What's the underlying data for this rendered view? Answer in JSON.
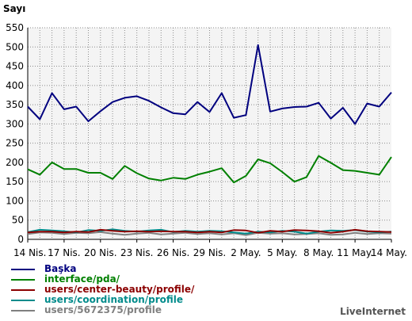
{
  "chart_data": {
    "type": "line",
    "title": "",
    "ylabel": "Sayı",
    "xlabel": "",
    "ylim": [
      0,
      550
    ],
    "y_ticks": [
      0,
      50,
      100,
      150,
      200,
      250,
      300,
      350,
      400,
      450,
      500,
      550
    ],
    "grid": true,
    "legend_position": "bottom-left",
    "x_ticks": [
      "14 Nis.",
      "17 Nis.",
      "20 Nis.",
      "23 Nis.",
      "26 Nis.",
      "29 Nis.",
      "2 May.",
      "5 May.",
      "8 May.",
      "11 May.",
      "14 May."
    ],
    "series": [
      {
        "name": "Başka",
        "color": "#00007f",
        "values": [
          345,
          312,
          380,
          338,
          345,
          307,
          333,
          357,
          368,
          372,
          360,
          343,
          328,
          325,
          357,
          331,
          380,
          316,
          323,
          505,
          332,
          340,
          344,
          345,
          355,
          314,
          342,
          300,
          353,
          345,
          382
        ]
      },
      {
        "name": "interface/pda/",
        "color": "#008000",
        "values": [
          182,
          168,
          200,
          183,
          183,
          173,
          173,
          157,
          191,
          172,
          158,
          153,
          160,
          157,
          168,
          176,
          185,
          148,
          165,
          208,
          198,
          175,
          150,
          162,
          217,
          199,
          180,
          178,
          173,
          168,
          214
        ]
      },
      {
        "name": "users/center-beauty/profile/",
        "color": "#8b0000",
        "values": [
          18,
          20,
          20,
          18,
          20,
          19,
          25,
          22,
          20,
          21,
          20,
          21,
          20,
          20,
          18,
          20,
          18,
          24,
          23,
          17,
          22,
          20,
          24,
          23,
          21,
          17,
          20,
          25,
          21,
          20,
          19
        ]
      },
      {
        "name": "users/coordination/profile",
        "color": "#008b8b",
        "values": [
          19,
          25,
          23,
          21,
          18,
          24,
          22,
          26,
          22,
          20,
          23,
          25,
          19,
          22,
          20,
          22,
          21,
          18,
          15,
          20,
          18,
          22,
          20,
          15,
          20,
          23,
          22,
          24,
          20,
          18,
          20
        ]
      },
      {
        "name": "users/5672375/profile",
        "color": "#808080",
        "values": [
          14,
          18,
          17,
          14,
          17,
          16,
          19,
          15,
          12,
          15,
          17,
          13,
          15,
          17,
          14,
          16,
          13,
          16,
          11,
          17,
          15,
          16,
          13,
          14,
          16,
          12,
          13,
          17,
          14,
          16,
          15
        ]
      }
    ]
  },
  "brand": "LiveInternet"
}
